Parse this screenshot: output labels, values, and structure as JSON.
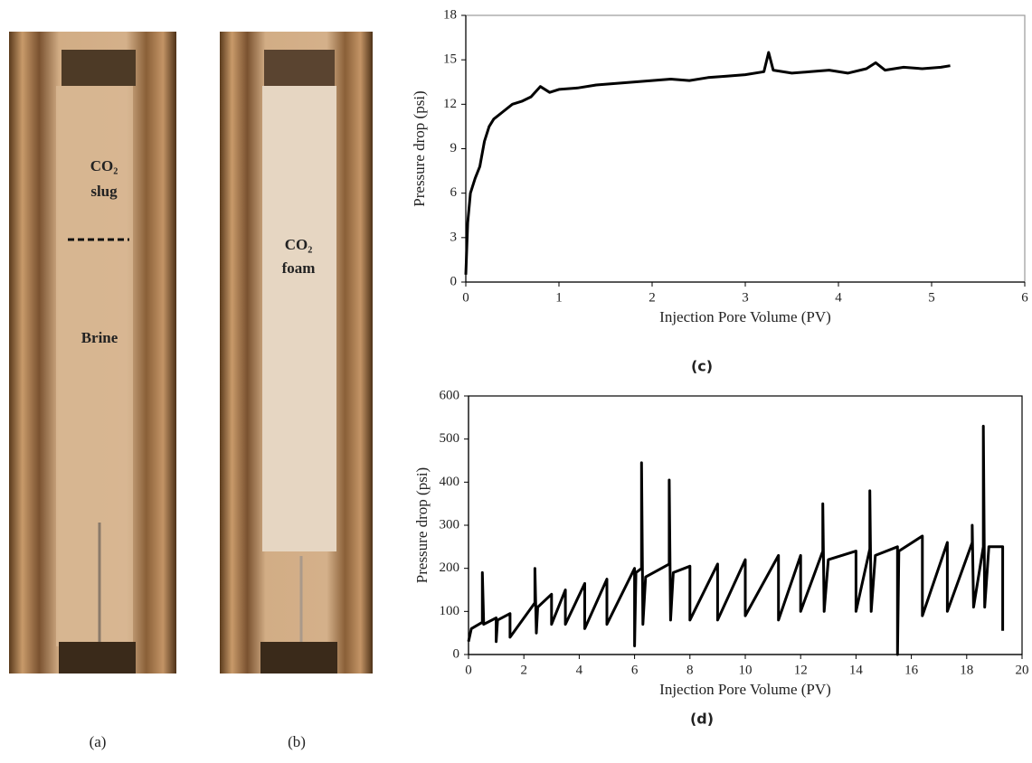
{
  "chart_data": [
    {
      "type": "line",
      "caption": "(c)",
      "x_label": "Injection Pore Volume (PV)",
      "y_label": "Pressure drop (psi)",
      "xlim": [
        0,
        6
      ],
      "xticks": [
        0,
        1,
        2,
        3,
        4,
        5,
        6
      ],
      "ylim": [
        0,
        18
      ],
      "yticks": [
        0,
        3,
        6,
        9,
        12,
        15,
        18
      ],
      "color": "#000000",
      "x": [
        0,
        0.02,
        0.05,
        0.1,
        0.15,
        0.2,
        0.25,
        0.3,
        0.4,
        0.5,
        0.6,
        0.7,
        0.8,
        0.9,
        1.0,
        1.2,
        1.4,
        1.6,
        1.8,
        2.0,
        2.2,
        2.4,
        2.6,
        2.8,
        3.0,
        3.2,
        3.25,
        3.3,
        3.5,
        3.7,
        3.9,
        4.1,
        4.3,
        4.4,
        4.5,
        4.7,
        4.9,
        5.1,
        5.2
      ],
      "values": [
        0.5,
        4,
        6,
        7,
        7.8,
        9.5,
        10.5,
        11,
        11.5,
        12,
        12.2,
        12.5,
        13.2,
        12.8,
        13,
        13.1,
        13.3,
        13.4,
        13.5,
        13.6,
        13.7,
        13.6,
        13.8,
        13.9,
        14,
        14.2,
        15.5,
        14.3,
        14.1,
        14.2,
        14.3,
        14.1,
        14.4,
        14.8,
        14.3,
        14.5,
        14.4,
        14.5,
        14.6
      ]
    },
    {
      "type": "line",
      "caption": "(d)",
      "x_label": "Injection Pore Volume (PV)",
      "y_label": "Pressure drop (psi)",
      "xlim": [
        0,
        20
      ],
      "xticks": [
        0,
        2,
        4,
        6,
        8,
        10,
        12,
        14,
        16,
        18,
        20
      ],
      "ylim": [
        0,
        600
      ],
      "yticks": [
        0,
        100,
        200,
        300,
        400,
        500,
        600
      ],
      "color": "#000000",
      "x": [
        0,
        0.1,
        0.5,
        0.5,
        0.55,
        1.0,
        1.0,
        1.05,
        1.5,
        1.5,
        2.4,
        2.4,
        2.45,
        2.5,
        3.0,
        3.0,
        3.5,
        3.5,
        4.2,
        4.2,
        5.0,
        5.0,
        6.0,
        6.0,
        6.05,
        6.25,
        6.25,
        6.3,
        6.4,
        7.25,
        7.25,
        7.3,
        7.4,
        8.0,
        8.0,
        9.0,
        9.0,
        10.0,
        10.0,
        11.2,
        11.2,
        12.0,
        12.0,
        12.8,
        12.8,
        12.85,
        13.0,
        14.0,
        14.0,
        14.5,
        14.5,
        14.55,
        14.7,
        15.5,
        15.5,
        15.55,
        16.4,
        16.4,
        17.3,
        17.3,
        18.2,
        18.2,
        18.25,
        18.6,
        18.6,
        18.65,
        18.8,
        19.3,
        19.3
      ],
      "values": [
        30,
        60,
        75,
        190,
        70,
        85,
        30,
        80,
        95,
        40,
        120,
        200,
        50,
        110,
        140,
        70,
        150,
        70,
        165,
        60,
        175,
        70,
        200,
        20,
        190,
        200,
        445,
        70,
        180,
        210,
        405,
        80,
        190,
        205,
        80,
        210,
        80,
        220,
        90,
        230,
        80,
        230,
        100,
        240,
        350,
        100,
        220,
        240,
        100,
        245,
        380,
        100,
        230,
        250,
        0,
        240,
        275,
        90,
        260,
        100,
        260,
        300,
        110,
        250,
        530,
        110,
        250,
        250,
        55
      ]
    }
  ],
  "photos": [
    {
      "caption": "(a)",
      "labels": [
        "CO₂",
        "slug",
        "Brine"
      ]
    },
    {
      "caption": "(b)",
      "labels": [
        "CO₂",
        "foam"
      ]
    }
  ]
}
